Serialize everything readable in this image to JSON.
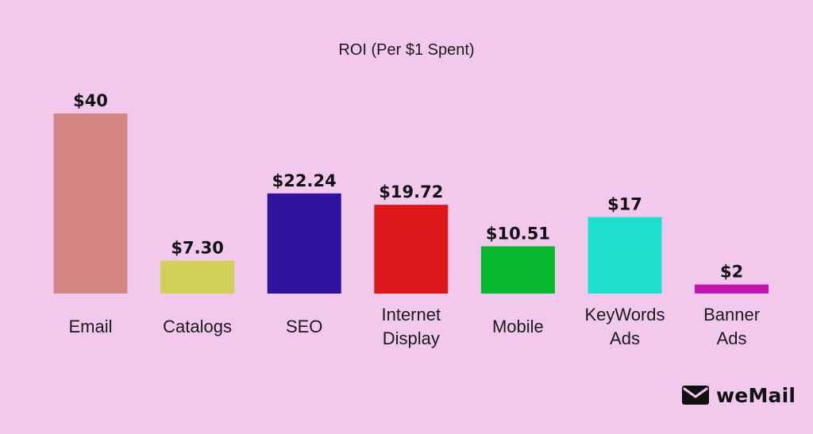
{
  "brand": {
    "name": "weMail",
    "icon": "envelope-icon"
  },
  "chart_data": {
    "type": "bar",
    "title": "ROI (Per $1 Spent)",
    "xlabel": "",
    "ylabel": "",
    "ylim": [
      0,
      40
    ],
    "grid": false,
    "categories": [
      [
        "Email"
      ],
      [
        "Catalogs"
      ],
      [
        "SEO"
      ],
      [
        "Internet",
        "Display"
      ],
      [
        "Mobile"
      ],
      [
        "KeyWords",
        "Ads"
      ],
      [
        "Banner",
        "Ads"
      ]
    ],
    "values": [
      40,
      7.3,
      22.24,
      19.72,
      10.51,
      17,
      2
    ],
    "value_labels": [
      "$40",
      "$7.30",
      "$22.24",
      "$19.72",
      "$10.51",
      "$17",
      "$2"
    ],
    "colors": [
      "#d68585",
      "#d0d056",
      "#2f12a0",
      "#dc1818",
      "#06b82a",
      "#1de0cc",
      "#c212b0"
    ]
  }
}
